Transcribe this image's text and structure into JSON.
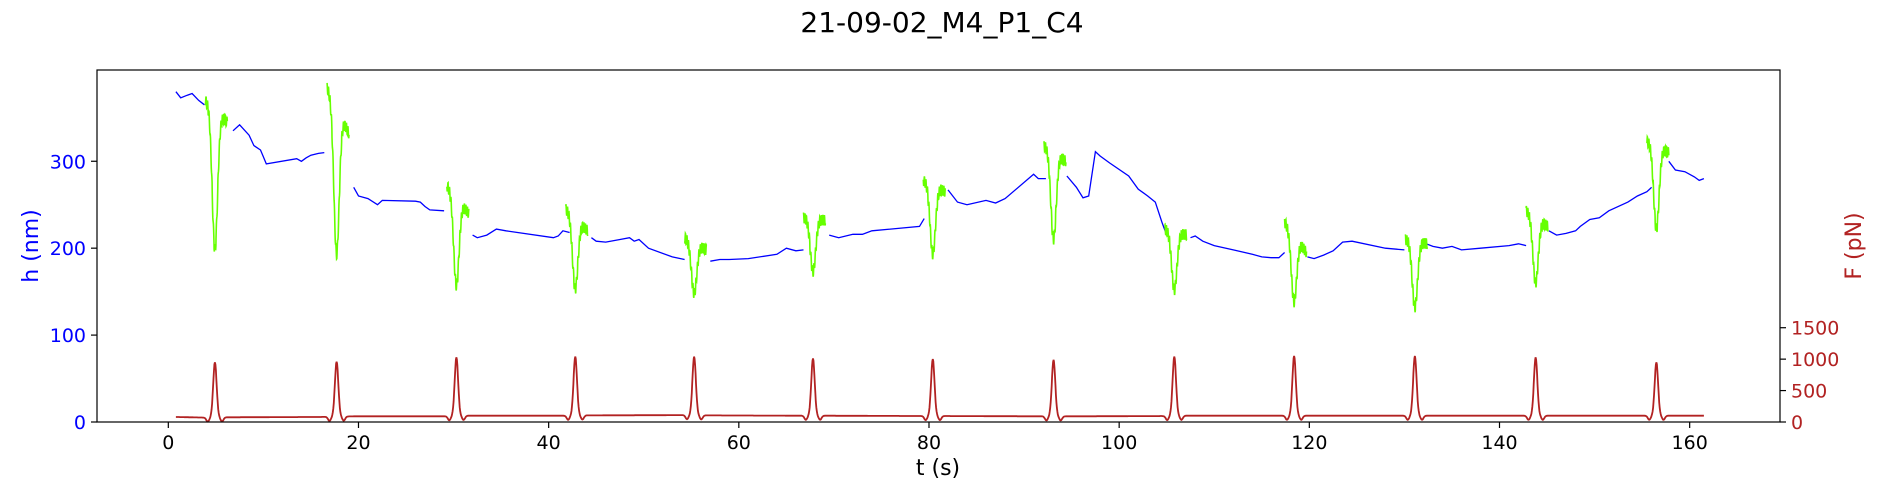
{
  "chart_data": {
    "type": "line",
    "title": "21-09-02_M4_P1_C4",
    "xlabel": "t (s)",
    "ylabel_left": "h (nm)",
    "ylabel_right": "F (pN)",
    "xlim": [
      -7.5,
      169.5
    ],
    "ylim_left": [
      0,
      405
    ],
    "ylim_right": [
      0,
      5600
    ],
    "xticks": [
      0,
      20,
      40,
      60,
      80,
      100,
      120,
      140,
      160
    ],
    "yticks_left": [
      0,
      100,
      200,
      300
    ],
    "yticks_right": [
      0,
      500,
      1000,
      1500
    ],
    "colors": {
      "h": "#0000ff",
      "h_highlight": "#66ff00",
      "force": "#b22222",
      "left_axis": "#0000ff",
      "right_axis": "#b22222"
    },
    "grid": false,
    "pulses": [
      {
        "t": 4.9,
        "f_peak": 950,
        "h_before": 370,
        "h_min": 198,
        "h_after": 345
      },
      {
        "t": 17.7,
        "f_peak": 960,
        "h_before": 385,
        "h_min": 193,
        "h_after": 332
      },
      {
        "t": 30.3,
        "f_peak": 1030,
        "h_before": 272,
        "h_min": 157,
        "h_after": 240
      },
      {
        "t": 42.8,
        "f_peak": 1040,
        "h_before": 245,
        "h_min": 153,
        "h_after": 220
      },
      {
        "t": 55.3,
        "f_peak": 1040,
        "h_before": 212,
        "h_min": 148,
        "h_after": 198
      },
      {
        "t": 67.8,
        "f_peak": 1010,
        "h_before": 235,
        "h_min": 173,
        "h_after": 232
      },
      {
        "t": 80.4,
        "f_peak": 1000,
        "h_before": 278,
        "h_min": 193,
        "h_after": 265
      },
      {
        "t": 93.1,
        "f_peak": 990,
        "h_before": 318,
        "h_min": 210,
        "h_after": 300
      },
      {
        "t": 105.8,
        "f_peak": 1040,
        "h_before": 222,
        "h_min": 152,
        "h_after": 215
      },
      {
        "t": 118.4,
        "f_peak": 1050,
        "h_before": 230,
        "h_min": 138,
        "h_after": 195
      },
      {
        "t": 131.1,
        "f_peak": 1050,
        "h_before": 210,
        "h_min": 132,
        "h_after": 205
      },
      {
        "t": 143.8,
        "f_peak": 1030,
        "h_before": 243,
        "h_min": 160,
        "h_after": 225
      },
      {
        "t": 156.5,
        "f_peak": 950,
        "h_before": 323,
        "h_min": 222,
        "h_after": 310
      }
    ],
    "h_series": [
      [
        0.8,
        380
      ],
      [
        1.3,
        373
      ],
      [
        2,
        376
      ],
      [
        2.5,
        378
      ],
      [
        3.2,
        370
      ],
      [
        3.8,
        365
      ],
      [
        6.8,
        335
      ],
      [
        7.5,
        342
      ],
      [
        8.5,
        330
      ],
      [
        9,
        318
      ],
      [
        9.7,
        313
      ],
      [
        10,
        305
      ],
      [
        10.3,
        297
      ],
      [
        13.5,
        303
      ],
      [
        14,
        300
      ],
      [
        14.5,
        304
      ],
      [
        15,
        307
      ],
      [
        15.8,
        309
      ],
      [
        16.4,
        310
      ],
      [
        19.5,
        270
      ],
      [
        20,
        260
      ],
      [
        21,
        257
      ],
      [
        22,
        250
      ],
      [
        22.5,
        255
      ],
      [
        26,
        254
      ],
      [
        26.5,
        253
      ],
      [
        27,
        248
      ],
      [
        27.5,
        244
      ],
      [
        29,
        243
      ],
      [
        32,
        215
      ],
      [
        32.5,
        212
      ],
      [
        33.5,
        215
      ],
      [
        34.5,
        222
      ],
      [
        35.5,
        220
      ],
      [
        40.5,
        212
      ],
      [
        41,
        214
      ],
      [
        41.5,
        220
      ],
      [
        42.2,
        218
      ],
      [
        44.5,
        212
      ],
      [
        45,
        208
      ],
      [
        46,
        207
      ],
      [
        47.5,
        210
      ],
      [
        48.5,
        212
      ],
      [
        49,
        208
      ],
      [
        49.5,
        210
      ],
      [
        50.5,
        200
      ],
      [
        53,
        190
      ],
      [
        54.3,
        187
      ],
      [
        57,
        185
      ],
      [
        58,
        187
      ],
      [
        59,
        187
      ],
      [
        61,
        188
      ],
      [
        64,
        193
      ],
      [
        65,
        200
      ],
      [
        66,
        197
      ],
      [
        66.8,
        198
      ],
      [
        69.5,
        215
      ],
      [
        70.5,
        212
      ],
      [
        72,
        216
      ],
      [
        73,
        216
      ],
      [
        74,
        220
      ],
      [
        79,
        225
      ],
      [
        79.5,
        234
      ],
      [
        82,
        267
      ],
      [
        83,
        253
      ],
      [
        84,
        250
      ],
      [
        86,
        255
      ],
      [
        87,
        252
      ],
      [
        88,
        257
      ],
      [
        91,
        285
      ],
      [
        91.5,
        280
      ],
      [
        92.3,
        280
      ],
      [
        94.5,
        283
      ],
      [
        95.5,
        270
      ],
      [
        96.2,
        258
      ],
      [
        96.8,
        260
      ],
      [
        97.5,
        311
      ],
      [
        98,
        306
      ],
      [
        99,
        298
      ],
      [
        101,
        283
      ],
      [
        102,
        268
      ],
      [
        103,
        260
      ],
      [
        103.8,
        253
      ],
      [
        104.5,
        230
      ],
      [
        105,
        215
      ],
      [
        107.5,
        212
      ],
      [
        108,
        214
      ],
      [
        108.8,
        208
      ],
      [
        110,
        203
      ],
      [
        112,
        198
      ],
      [
        114,
        193
      ],
      [
        115,
        190
      ],
      [
        116,
        189
      ],
      [
        116.8,
        189
      ],
      [
        117.4,
        195
      ],
      [
        119.8,
        190
      ],
      [
        120.5,
        188
      ],
      [
        121.5,
        192
      ],
      [
        122.5,
        197
      ],
      [
        123.5,
        207
      ],
      [
        124.5,
        208
      ],
      [
        128,
        200
      ],
      [
        130,
        198
      ],
      [
        132.3,
        205
      ],
      [
        133,
        202
      ],
      [
        134,
        200
      ],
      [
        135,
        202
      ],
      [
        136,
        198
      ],
      [
        138,
        200
      ],
      [
        141,
        203
      ],
      [
        142,
        205
      ],
      [
        142.8,
        203
      ],
      [
        145.2,
        220
      ],
      [
        146,
        215
      ],
      [
        147,
        217
      ],
      [
        148,
        220
      ],
      [
        148.5,
        225
      ],
      [
        149.5,
        233
      ],
      [
        150.5,
        235
      ],
      [
        151.5,
        243
      ],
      [
        153.5,
        253
      ],
      [
        154.5,
        260
      ],
      [
        155.5,
        265
      ],
      [
        156,
        270
      ],
      [
        157.8,
        300
      ],
      [
        158.5,
        290
      ],
      [
        159.5,
        288
      ],
      [
        160.5,
        282
      ],
      [
        161,
        278
      ],
      [
        161.5,
        280
      ]
    ],
    "force_baseline": [
      [
        0.8,
        80
      ],
      [
        3.8,
        70
      ],
      [
        6.5,
        75
      ],
      [
        16,
        80
      ],
      [
        19.5,
        90
      ],
      [
        29,
        90
      ],
      [
        31.5,
        100
      ],
      [
        42,
        100
      ],
      [
        44,
        105
      ],
      [
        54.5,
        110
      ],
      [
        56.5,
        105
      ],
      [
        67,
        100
      ],
      [
        69,
        100
      ],
      [
        79.5,
        95
      ],
      [
        81.5,
        95
      ],
      [
        92.5,
        90
      ],
      [
        94.5,
        90
      ],
      [
        105,
        95
      ],
      [
        107,
        100
      ],
      [
        117.5,
        100
      ],
      [
        119.5,
        100
      ],
      [
        130,
        100
      ],
      [
        132,
        100
      ],
      [
        142.8,
        100
      ],
      [
        144.8,
        100
      ],
      [
        155.5,
        100
      ],
      [
        157.5,
        100
      ],
      [
        161.5,
        100
      ]
    ]
  }
}
